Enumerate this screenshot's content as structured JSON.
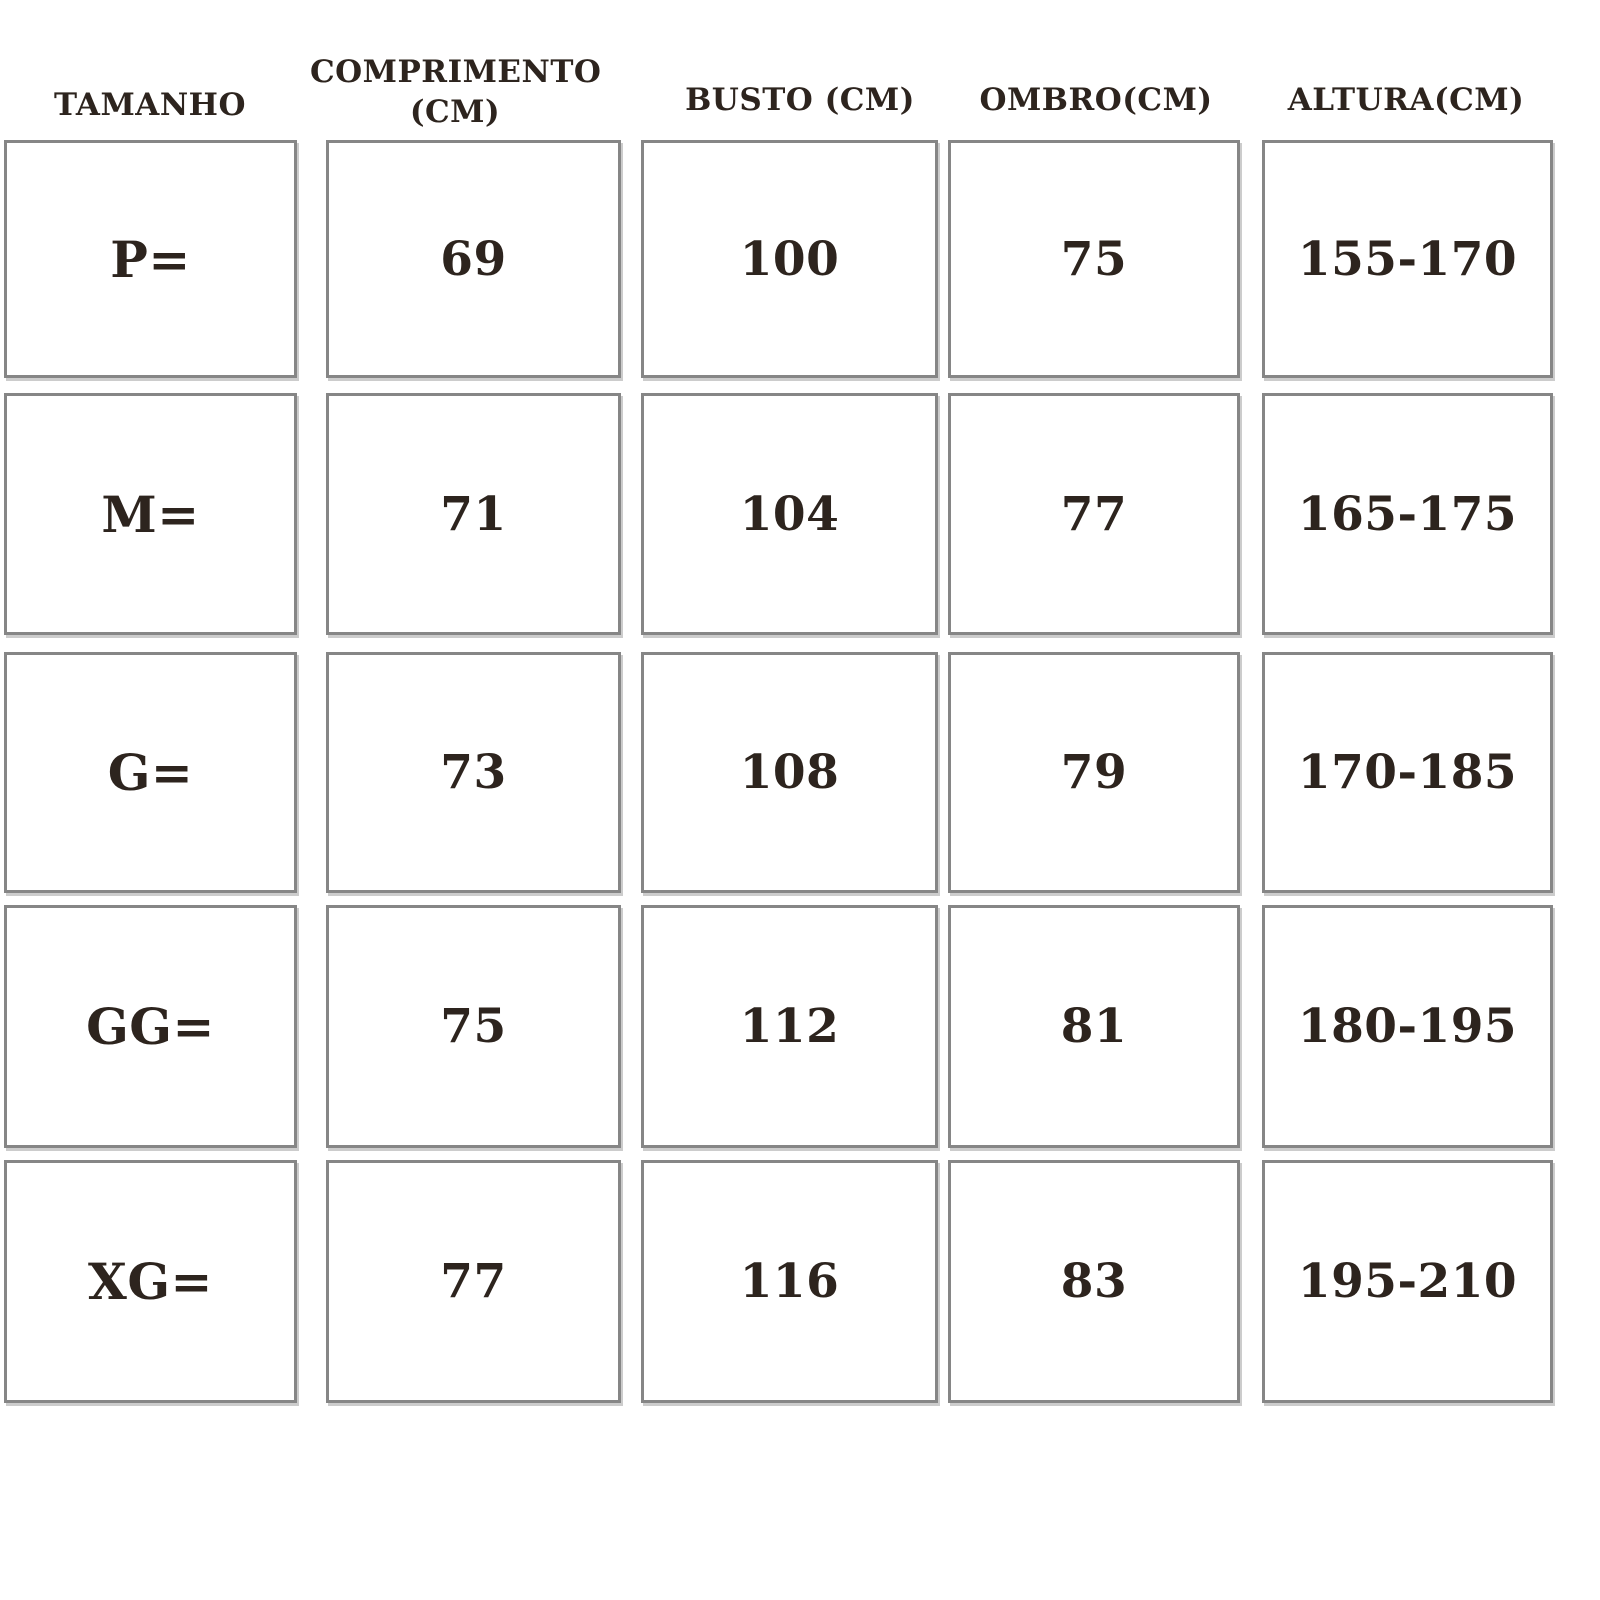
{
  "chart_data": {
    "type": "table",
    "title": "Size chart (Portuguese) — garment measurements",
    "columns": [
      {
        "id": "tamanho",
        "label": "TAMANHO"
      },
      {
        "id": "comprimento",
        "label": "COMPRIMENTO (CM)"
      },
      {
        "id": "busto",
        "label": "BUSTO (CM)"
      },
      {
        "id": "ombro",
        "label": "OMBRO(CM)"
      },
      {
        "id": "altura",
        "label": "ALTURA(CM)"
      }
    ],
    "rows": [
      {
        "tamanho": "P=",
        "comprimento": "69",
        "busto": "100",
        "ombro": "75",
        "altura": "155-170"
      },
      {
        "tamanho": "M=",
        "comprimento": "71",
        "busto": "104",
        "ombro": "77",
        "altura": "165-175"
      },
      {
        "tamanho": "G=",
        "comprimento": "73",
        "busto": "108",
        "ombro": "79",
        "altura": "170-185"
      },
      {
        "tamanho": "GG=",
        "comprimento": "75",
        "busto": "112",
        "ombro": "81",
        "altura": "180-195"
      },
      {
        "tamanho": "XG=",
        "comprimento": "77",
        "busto": "116",
        "ombro": "83",
        "altura": "195-210"
      }
    ]
  },
  "colors": {
    "text": "#2d241e",
    "cell_border": "#868686",
    "background": "#ffffff"
  }
}
